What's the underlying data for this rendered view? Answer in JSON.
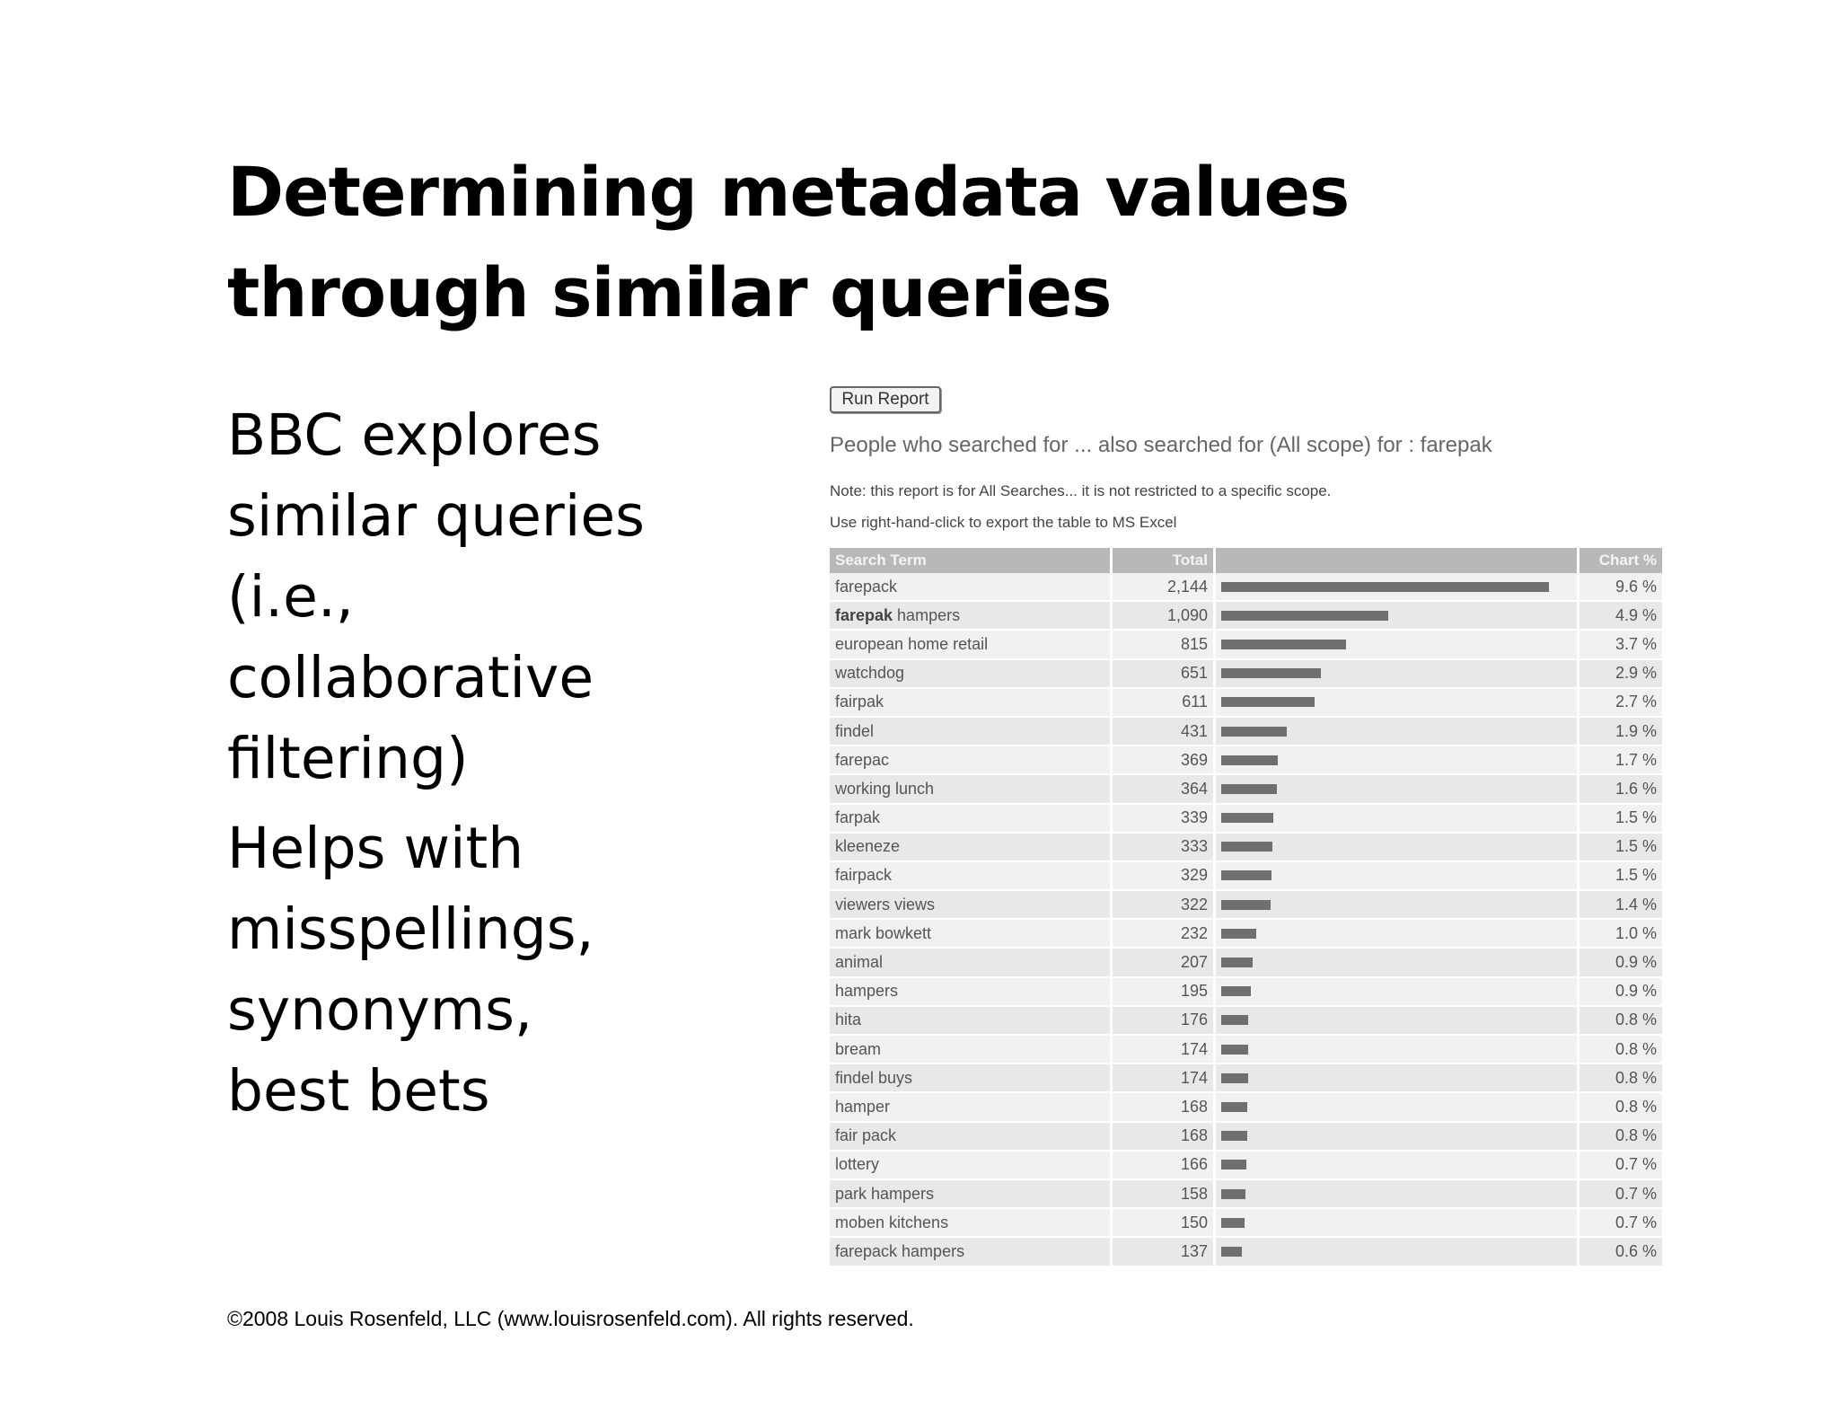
{
  "slide": {
    "title_lines": [
      "Determining metadata values",
      "through similar queries"
    ],
    "bullet1_lines": [
      "BBC explores",
      "similar queries",
      "(i.e.,",
      "collaborative",
      "filtering)"
    ],
    "bullet2_lines": [
      "Helps with",
      "misspellings,",
      "synonyms,",
      "best bets"
    ],
    "footer": "©2008 Louis Rosenfeld, LLC (www.louisrosenfeld.com). All rights reserved."
  },
  "report": {
    "run_button": "Run Report",
    "heading": "People who searched for ... also searched for (All scope) for : farepak",
    "note1": "Note: this report is for All Searches... it is not restricted to a specific scope.",
    "note2": "Use right-hand-click to export the table to MS Excel",
    "columns": [
      "Search Term",
      "Total",
      "",
      "Chart %"
    ],
    "bar_color": "#6f6f6f",
    "rows": [
      {
        "bold": "",
        "term": "farepack",
        "total": "2,144",
        "pct": "9.6 %",
        "value": 2144
      },
      {
        "bold": "farepak",
        "term": " hampers",
        "total": "1,090",
        "pct": "4.9 %",
        "value": 1090
      },
      {
        "bold": "",
        "term": "european home retail",
        "total": "815",
        "pct": "3.7 %",
        "value": 815
      },
      {
        "bold": "",
        "term": "watchdog",
        "total": "651",
        "pct": "2.9 %",
        "value": 651
      },
      {
        "bold": "",
        "term": "fairpak",
        "total": "611",
        "pct": "2.7 %",
        "value": 611
      },
      {
        "bold": "",
        "term": "findel",
        "total": "431",
        "pct": "1.9 %",
        "value": 431
      },
      {
        "bold": "",
        "term": "farepac",
        "total": "369",
        "pct": "1.7 %",
        "value": 369
      },
      {
        "bold": "",
        "term": "working lunch",
        "total": "364",
        "pct": "1.6 %",
        "value": 364
      },
      {
        "bold": "",
        "term": "farpak",
        "total": "339",
        "pct": "1.5 %",
        "value": 339
      },
      {
        "bold": "",
        "term": "kleeneze",
        "total": "333",
        "pct": "1.5 %",
        "value": 333
      },
      {
        "bold": "",
        "term": "fairpack",
        "total": "329",
        "pct": "1.5 %",
        "value": 329
      },
      {
        "bold": "",
        "term": "viewers views",
        "total": "322",
        "pct": "1.4 %",
        "value": 322
      },
      {
        "bold": "",
        "term": "mark bowkett",
        "total": "232",
        "pct": "1.0 %",
        "value": 232
      },
      {
        "bold": "",
        "term": "animal",
        "total": "207",
        "pct": "0.9 %",
        "value": 207
      },
      {
        "bold": "",
        "term": "hampers",
        "total": "195",
        "pct": "0.9 %",
        "value": 195
      },
      {
        "bold": "",
        "term": "hita",
        "total": "176",
        "pct": "0.8 %",
        "value": 176
      },
      {
        "bold": "",
        "term": "bream",
        "total": "174",
        "pct": "0.8 %",
        "value": 174
      },
      {
        "bold": "",
        "term": "findel buys",
        "total": "174",
        "pct": "0.8 %",
        "value": 174
      },
      {
        "bold": "",
        "term": "hamper",
        "total": "168",
        "pct": "0.8 %",
        "value": 168
      },
      {
        "bold": "",
        "term": "fair pack",
        "total": "168",
        "pct": "0.8 %",
        "value": 168
      },
      {
        "bold": "",
        "term": "lottery",
        "total": "166",
        "pct": "0.7 %",
        "value": 166
      },
      {
        "bold": "",
        "term": "park hampers",
        "total": "158",
        "pct": "0.7 %",
        "value": 158
      },
      {
        "bold": "",
        "term": "moben kitchens",
        "total": "150",
        "pct": "0.7 %",
        "value": 150
      },
      {
        "bold": "",
        "term": "farepack hampers",
        "total": "137",
        "pct": "0.6 %",
        "value": 137
      }
    ]
  }
}
